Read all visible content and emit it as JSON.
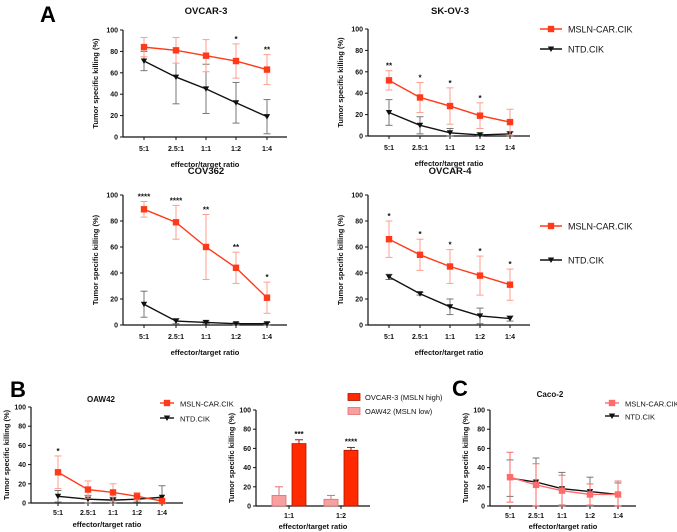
{
  "panel_labels": [
    "A",
    "B",
    "C"
  ],
  "chart_data": [
    {
      "type": "line",
      "title": "OVCAR-3",
      "xlabel": "effector/target ratio",
      "ylabel": "Tumor specific killing (%)",
      "ylim": [
        0,
        100
      ],
      "yticks": [
        0,
        20,
        40,
        60,
        80,
        100
      ],
      "categories": [
        "5:1",
        "2.5:1",
        "1:1",
        "1:2",
        "1:4"
      ],
      "series": [
        {
          "name": "MSLN-CAR.CIK",
          "values": [
            84,
            81,
            76,
            71,
            63
          ],
          "errors": [
            9,
            12,
            15,
            16,
            14
          ]
        },
        {
          "name": "NTD.CIK",
          "values": [
            71,
            56,
            45,
            32,
            19
          ],
          "errors": [
            9,
            25,
            23,
            19,
            16
          ]
        }
      ],
      "significance": [
        "",
        "",
        "",
        "*",
        "**"
      ],
      "legend": null
    },
    {
      "type": "line",
      "title": "SK-OV-3",
      "xlabel": "effector/target ratio",
      "ylabel": "Tumor specific killing (%)",
      "ylim": [
        0,
        100
      ],
      "yticks": [
        0,
        20,
        40,
        60,
        80,
        100
      ],
      "categories": [
        "5:1",
        "2.5:1",
        "1:1",
        "1:2",
        "1:4"
      ],
      "series": [
        {
          "name": "MSLN-CAR.CIK",
          "values": [
            52,
            36,
            28,
            19,
            13
          ],
          "errors": [
            9,
            14,
            17,
            12,
            12
          ]
        },
        {
          "name": "NTD.CIK",
          "values": [
            22,
            10,
            3,
            1,
            2
          ],
          "errors": [
            12,
            8,
            4,
            2,
            2
          ]
        }
      ],
      "significance": [
        "**",
        "*",
        "*",
        "*",
        ""
      ],
      "legend": "right"
    },
    {
      "type": "line",
      "title": "COV362",
      "xlabel": "effector/target ratio",
      "ylabel": "Tumor specific killing (%)",
      "ylim": [
        0,
        100
      ],
      "yticks": [
        0,
        20,
        40,
        60,
        80,
        100
      ],
      "categories": [
        "5:1",
        "2.5:1",
        "1:1",
        "1:2",
        "1:4"
      ],
      "series": [
        {
          "name": "MSLN-CAR.CIK",
          "values": [
            89,
            79,
            60,
            44,
            21
          ],
          "errors": [
            6,
            13,
            25,
            12,
            12
          ]
        },
        {
          "name": "NTD.CIK",
          "values": [
            16,
            3,
            2,
            1,
            1
          ],
          "errors": [
            10,
            2,
            1,
            1,
            1
          ]
        }
      ],
      "significance": [
        "****",
        "****",
        "**",
        "**",
        "*"
      ],
      "legend": null
    },
    {
      "type": "line",
      "title": "OVCAR-4",
      "xlabel": "effector/target ratio",
      "ylabel": "Tumor specific killing (%)",
      "ylim": [
        0,
        100
      ],
      "yticks": [
        0,
        20,
        40,
        60,
        80,
        100
      ],
      "categories": [
        "5:1",
        "2.5:1",
        "1:1",
        "1:2",
        "1:4"
      ],
      "series": [
        {
          "name": "MSLN-CAR.CIK",
          "values": [
            66,
            54,
            45,
            38,
            31
          ],
          "errors": [
            14,
            12,
            13,
            15,
            12
          ]
        },
        {
          "name": "NTD.CIK",
          "values": [
            37,
            24,
            14,
            7,
            5
          ],
          "errors": [
            2,
            1,
            6,
            6,
            2
          ]
        }
      ],
      "significance": [
        "*",
        "*",
        "*",
        "*",
        "*"
      ],
      "legend": "right"
    },
    {
      "type": "line",
      "title": "OAW42",
      "xlabel": "effector/target ratio",
      "ylabel": "Tumor specific killing (%)",
      "ylim": [
        0,
        100
      ],
      "yticks": [
        0,
        20,
        40,
        60,
        80,
        100
      ],
      "categories": [
        "5:1",
        "2.5:1",
        "1:1",
        "1:2",
        "1:4"
      ],
      "series": [
        {
          "name": "MSLN-CAR.CIK",
          "values": [
            32,
            14,
            11,
            7,
            2
          ],
          "errors": [
            17,
            9,
            9,
            4,
            2
          ]
        },
        {
          "name": "NTD.CIK",
          "values": [
            7,
            4,
            3,
            4,
            6
          ],
          "errors": [
            6,
            4,
            3,
            3,
            12
          ]
        }
      ],
      "significance": [
        "*",
        "",
        "",
        "",
        ""
      ],
      "legend": "top-right"
    },
    {
      "type": "bar",
      "title": "",
      "xlabel": "effector/target ratio",
      "ylabel": "Tumor specific killing (%)",
      "ylim": [
        0,
        100
      ],
      "yticks": [
        0,
        20,
        40,
        60,
        80,
        100
      ],
      "categories": [
        "1:1",
        "1:2"
      ],
      "series": [
        {
          "name": "OAW42 (MSLN low)",
          "values": [
            11,
            7
          ],
          "errors": [
            9,
            4
          ]
        },
        {
          "name": "OVCAR-3 (MSLN high)",
          "values": [
            65,
            58
          ],
          "errors": [
            4,
            3
          ]
        }
      ],
      "legend_order": [
        "OVCAR-3 (MSLN high)",
        "OAW42 (MSLN low)"
      ],
      "significance": [
        "***",
        "****"
      ],
      "legend": "top-right"
    },
    {
      "type": "line",
      "title": "Caco-2",
      "xlabel": "effector/target ratio",
      "ylabel": "Tumor specific killing (%)",
      "ylim": [
        0,
        100
      ],
      "yticks": [
        0,
        20,
        40,
        60,
        80,
        100
      ],
      "categories": [
        "5:1",
        "2.5:1",
        "1:1",
        "1:2",
        "1:4"
      ],
      "series": [
        {
          "name": "MSLN-CAR.CIK",
          "values": [
            30,
            22,
            16,
            12,
            12
          ],
          "errors": [
            26,
            22,
            16,
            11,
            14
          ]
        },
        {
          "name": "NTD.CIK",
          "values": [
            29,
            25,
            18,
            15,
            12
          ],
          "errors": [
            19,
            25,
            17,
            15,
            12
          ]
        }
      ],
      "significance": [
        "",
        "",
        "",
        "",
        ""
      ],
      "legend": "top-right"
    }
  ],
  "colors": {
    "msln": "#ff3a1a",
    "msln_err": "#ff9e8e",
    "ntd": "#111111",
    "ntd_err": "#777777",
    "caco_msln": "#ff6a6a",
    "bar_high": "#ff2a00",
    "bar_high_edge": "#a81800",
    "bar_low": "#f6a0a0",
    "bar_low_edge": "#e07070"
  }
}
